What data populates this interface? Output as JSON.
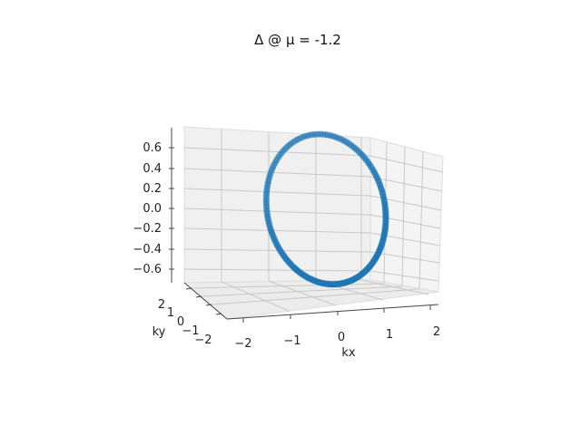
{
  "chart_data": {
    "type": "scatter3d",
    "title": "Δ @ μ = -1.2",
    "xlabel": "kx",
    "ylabel": "ky",
    "zlabel": "",
    "xlim": [
      -2.3,
      2.3
    ],
    "ylim": [
      -2.3,
      2.3
    ],
    "zlim": [
      -0.72,
      0.72
    ],
    "xticks": [
      "−2",
      "−1",
      "0",
      "1",
      "2"
    ],
    "yticks": [
      "2",
      "1",
      "0",
      "−1",
      "−2"
    ],
    "zticks": [
      "0.6",
      "0.4",
      "0.2",
      "0.0",
      "−0.2",
      "−0.4",
      "−0.6"
    ],
    "grid": true,
    "marker_color": "#1f77b4",
    "curve": {
      "n_points": 150,
      "kx_radius": 2.0,
      "ky_radius": 2.0,
      "delta_amplitude": 0.65,
      "description_in_data_units": "points on a closed Fermi-surface loop; z = Δ(kx, ky)"
    }
  }
}
